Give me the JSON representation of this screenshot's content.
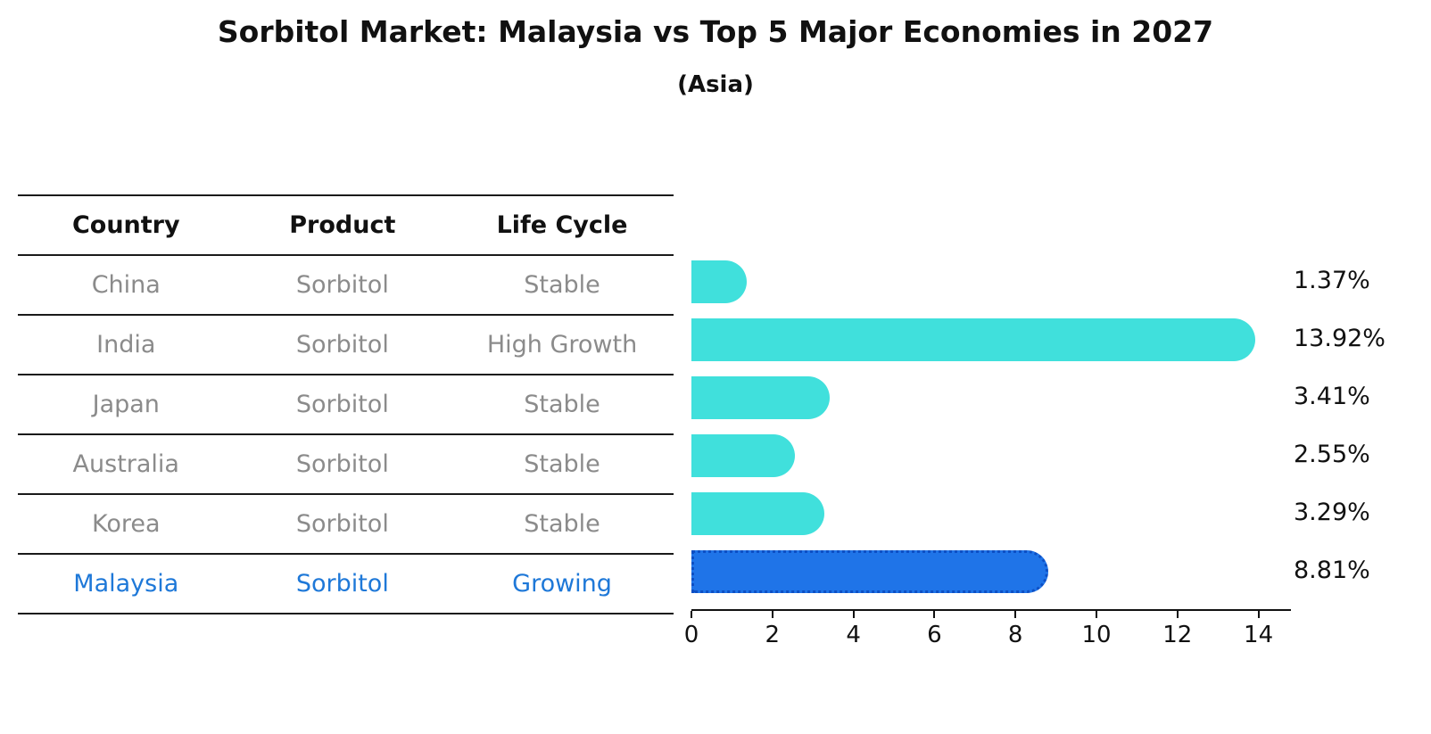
{
  "title": "Sorbitol Market: Malaysia vs Top 5 Major Economies in 2027",
  "subtitle": "(Asia)",
  "table": {
    "headers": [
      "Country",
      "Product",
      "Life Cycle"
    ]
  },
  "chart_data": {
    "type": "bar",
    "orientation": "horizontal",
    "title": "Sorbitol Market: Malaysia vs Top 5 Major Economies in 2027",
    "subtitle": "(Asia)",
    "categories": [
      "China",
      "India",
      "Japan",
      "Australia",
      "Korea",
      "Malaysia"
    ],
    "values": [
      1.37,
      13.92,
      3.41,
      2.55,
      3.29,
      8.81
    ],
    "rows": [
      {
        "country": "China",
        "product": "Sorbitol",
        "life_cycle": "Stable",
        "value": 1.37,
        "value_label": "1.37%",
        "highlight": false
      },
      {
        "country": "India",
        "product": "Sorbitol",
        "life_cycle": "High Growth",
        "value": 13.92,
        "value_label": "13.92%",
        "highlight": false
      },
      {
        "country": "Japan",
        "product": "Sorbitol",
        "life_cycle": "Stable",
        "value": 3.41,
        "value_label": "3.41%",
        "highlight": false
      },
      {
        "country": "Australia",
        "product": "Sorbitol",
        "life_cycle": "Stable",
        "value": 2.55,
        "value_label": "2.55%",
        "highlight": false
      },
      {
        "country": "Korea",
        "product": "Sorbitol",
        "life_cycle": "Stable",
        "value": 3.29,
        "value_label": "3.29%",
        "highlight": false
      },
      {
        "country": "Malaysia",
        "product": "Sorbitol",
        "life_cycle": "Growing",
        "value": 8.81,
        "value_label": "8.81%",
        "highlight": true
      }
    ],
    "xlim": [
      0,
      14
    ],
    "xticks": [
      0,
      2,
      4,
      6,
      8,
      10,
      12,
      14
    ],
    "legend": "none",
    "grid": false,
    "colors": {
      "bar": "#40e0dc",
      "highlight_bar": "#1f74e8",
      "highlight_outline": "#0d4fc4",
      "highlight_text": "#1e78d8",
      "row_text": "#8b8b8b",
      "header_text": "#111111"
    }
  }
}
